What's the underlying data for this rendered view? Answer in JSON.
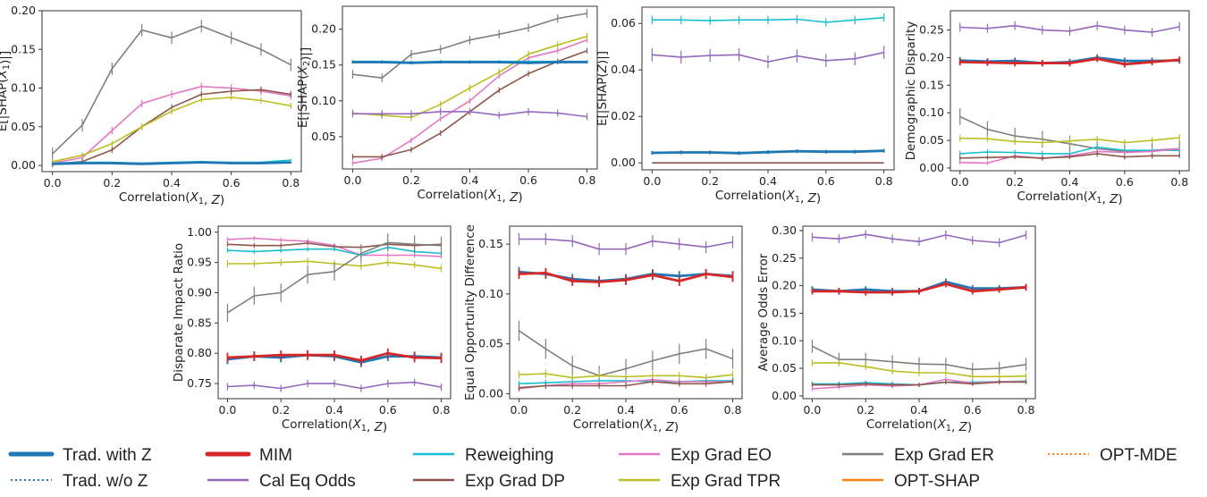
{
  "legend": [
    {
      "key": "trad_z",
      "label": "Trad. with Z",
      "color": "#1f77b4",
      "style": "thick"
    },
    {
      "key": "mim",
      "label": "MIM",
      "color": "#d62728",
      "style": "thick"
    },
    {
      "key": "rew",
      "label": "Reweighing",
      "color": "#17becf",
      "style": "solid"
    },
    {
      "key": "eo",
      "label": "Exp Grad EO",
      "color": "#e377c2",
      "style": "solid"
    },
    {
      "key": "er",
      "label": "Exp Grad ER",
      "color": "#7f7f7f",
      "style": "solid"
    },
    {
      "key": "optmde",
      "label": "OPT-MDE",
      "color": "#ff7f0e",
      "style": "dotted"
    },
    {
      "key": "trad_noz",
      "label": "Trad. w/o Z",
      "color": "#1f77b4",
      "style": "dotted"
    },
    {
      "key": "cal",
      "label": "Cal Eq Odds",
      "color": "#9467bd",
      "style": "solid"
    },
    {
      "key": "dp",
      "label": "Exp Grad DP",
      "color": "#8c564b",
      "style": "solid"
    },
    {
      "key": "tpr",
      "label": "Exp Grad TPR",
      "color": "#bcbd22",
      "style": "solid"
    },
    {
      "key": "optshap",
      "label": "OPT-SHAP",
      "color": "#ff7f0e",
      "style": "solid"
    }
  ],
  "colors": {
    "trad_z": "#1f77b4",
    "trad_noz": "#1f77b4",
    "mim": "#d62728",
    "cal": "#9467bd",
    "rew": "#17becf",
    "dp": "#8c564b",
    "eo": "#e377c2",
    "tpr": "#bcbd22",
    "er": "#7f7f7f",
    "optshap": "#ff7f0e",
    "optmde": "#ff7f0e"
  },
  "chart_data": [
    {
      "type": "line",
      "xlabel": "Correlation(X1, Z)",
      "ylabel": "E[|SHAP(X1)|]",
      "x": [
        0.0,
        0.1,
        0.2,
        0.3,
        0.4,
        0.5,
        0.6,
        0.7,
        0.8
      ],
      "xticks": [
        "0.0",
        "0.2",
        "0.4",
        "0.6",
        "0.8"
      ],
      "xlim": [
        -0.035,
        0.835
      ],
      "ylim": [
        -0.008,
        0.2
      ],
      "yticks": [
        0.0,
        0.05,
        0.1,
        0.15,
        0.2
      ],
      "ytick_labels": [
        "0.00",
        "0.05",
        "0.10",
        "0.15",
        "0.20"
      ],
      "series": [
        {
          "key": "er",
          "values": [
            0.015,
            0.052,
            0.125,
            0.175,
            0.165,
            0.18,
            0.165,
            0.15,
            0.13
          ],
          "err": 0.008
        },
        {
          "key": "eo",
          "values": [
            0.003,
            0.01,
            0.045,
            0.08,
            0.092,
            0.102,
            0.1,
            0.096,
            0.09
          ],
          "err": 0.005
        },
        {
          "key": "dp",
          "values": [
            0.002,
            0.005,
            0.02,
            0.05,
            0.075,
            0.092,
            0.096,
            0.098,
            0.092
          ],
          "err": 0.004
        },
        {
          "key": "tpr",
          "values": [
            0.005,
            0.013,
            0.028,
            0.05,
            0.07,
            0.085,
            0.088,
            0.084,
            0.077
          ],
          "err": 0.004
        },
        {
          "key": "rew",
          "values": [
            0.003,
            0.004,
            0.004,
            0.003,
            0.004,
            0.005,
            0.004,
            0.004,
            0.007
          ],
          "err": 0.001
        },
        {
          "key": "trad_z",
          "values": [
            0.002,
            0.003,
            0.003,
            0.002,
            0.003,
            0.004,
            0.003,
            0.003,
            0.004
          ],
          "err": 0.001
        }
      ]
    },
    {
      "type": "line",
      "xlabel": "Correlation(X1, Z)",
      "ylabel": "E[|SHAP(X2)|]",
      "x": [
        0.0,
        0.1,
        0.2,
        0.3,
        0.4,
        0.5,
        0.6,
        0.7,
        0.8
      ],
      "xticks": [
        "0.0",
        "0.2",
        "0.4",
        "0.6",
        "0.8"
      ],
      "xlim": [
        -0.035,
        0.835
      ],
      "ylim": [
        0.005,
        0.232
      ],
      "yticks": [
        0.05,
        0.1,
        0.15,
        0.2
      ],
      "ytick_labels": [
        "0.05",
        "0.10",
        "0.15",
        "0.20"
      ],
      "series": [
        {
          "key": "er",
          "values": [
            0.137,
            0.132,
            0.165,
            0.172,
            0.185,
            0.193,
            0.202,
            0.215,
            0.222
          ],
          "err": 0.006
        },
        {
          "key": "eo",
          "values": [
            0.013,
            0.02,
            0.045,
            0.075,
            0.1,
            0.135,
            0.16,
            0.17,
            0.185
          ],
          "err": 0.004
        },
        {
          "key": "tpr",
          "values": [
            0.083,
            0.08,
            0.077,
            0.095,
            0.118,
            0.14,
            0.165,
            0.178,
            0.19
          ],
          "err": 0.005
        },
        {
          "key": "dp",
          "values": [
            0.022,
            0.022,
            0.032,
            0.055,
            0.085,
            0.115,
            0.138,
            0.155,
            0.17
          ],
          "err": 0.004
        },
        {
          "key": "cal",
          "values": [
            0.082,
            0.082,
            0.082,
            0.085,
            0.085,
            0.08,
            0.085,
            0.083,
            0.078
          ],
          "err": 0.005
        },
        {
          "key": "rew",
          "values": [
            0.155,
            0.155,
            0.154,
            0.155,
            0.155,
            0.155,
            0.155,
            0.155,
            0.155
          ],
          "err": 0.002
        },
        {
          "key": "trad_z",
          "values": [
            0.154,
            0.154,
            0.153,
            0.154,
            0.154,
            0.154,
            0.153,
            0.154,
            0.154
          ],
          "err": 0.002
        }
      ]
    },
    {
      "type": "line",
      "xlabel": "Correlation(X1, Z)",
      "ylabel": "E[|SHAP(Z)|]",
      "x": [
        0.0,
        0.1,
        0.2,
        0.3,
        0.4,
        0.5,
        0.6,
        0.7,
        0.8
      ],
      "xticks": [
        "0.0",
        "0.2",
        "0.4",
        "0.6",
        "0.8"
      ],
      "xlim": [
        -0.035,
        0.835
      ],
      "ylim": [
        -0.003,
        0.067
      ],
      "yticks": [
        0.0,
        0.02,
        0.04,
        0.06
      ],
      "ytick_labels": [
        "0.00",
        "0.02",
        "0.04",
        "0.06"
      ],
      "series": [
        {
          "key": "rew",
          "values": [
            0.0615,
            0.0615,
            0.0612,
            0.0615,
            0.0615,
            0.0618,
            0.0605,
            0.0615,
            0.0625
          ],
          "err": 0.0018
        },
        {
          "key": "cal",
          "values": [
            0.0465,
            0.0455,
            0.0462,
            0.0465,
            0.0435,
            0.046,
            0.044,
            0.0448,
            0.0475
          ],
          "err": 0.0028
        },
        {
          "key": "trad_z",
          "values": [
            0.0043,
            0.0045,
            0.0045,
            0.0042,
            0.0046,
            0.005,
            0.0048,
            0.0048,
            0.0052
          ],
          "err": 0.0008
        },
        {
          "key": "dp",
          "values": [
            0.0,
            0.0,
            0.0,
            0.0,
            0.0,
            0.0,
            0.0,
            0.0,
            0.0
          ],
          "err": 0
        }
      ]
    },
    {
      "type": "line",
      "xlabel": "Correlation(X1, Z)",
      "ylabel": "Demographic Disparity",
      "x": [
        0.0,
        0.1,
        0.2,
        0.3,
        0.4,
        0.5,
        0.6,
        0.7,
        0.8
      ],
      "xticks": [
        "0.0",
        "0.2",
        "0.4",
        "0.6",
        "0.8"
      ],
      "xlim": [
        -0.035,
        0.835
      ],
      "ylim": [
        -0.005,
        0.285
      ],
      "yticks": [
        0.0,
        0.05,
        0.1,
        0.15,
        0.2,
        0.25
      ],
      "ytick_labels": [
        "0.00",
        "0.05",
        "0.10",
        "0.15",
        "0.20",
        "0.25"
      ],
      "series": [
        {
          "key": "cal",
          "values": [
            0.255,
            0.253,
            0.258,
            0.25,
            0.248,
            0.258,
            0.25,
            0.246,
            0.256
          ],
          "err": 0.008
        },
        {
          "key": "trad_z",
          "values": [
            0.195,
            0.193,
            0.194,
            0.19,
            0.192,
            0.2,
            0.194,
            0.194,
            0.195
          ],
          "err": 0.006
        },
        {
          "key": "mim",
          "values": [
            0.192,
            0.191,
            0.19,
            0.19,
            0.19,
            0.198,
            0.188,
            0.192,
            0.196
          ],
          "err": 0.006
        },
        {
          "key": "er",
          "values": [
            0.093,
            0.07,
            0.058,
            0.052,
            0.044,
            0.035,
            0.03,
            0.032,
            0.035
          ],
          "err": 0.015
        },
        {
          "key": "tpr",
          "values": [
            0.054,
            0.053,
            0.048,
            0.046,
            0.049,
            0.052,
            0.046,
            0.05,
            0.055
          ],
          "err": 0.006
        },
        {
          "key": "rew",
          "values": [
            0.026,
            0.029,
            0.028,
            0.026,
            0.026,
            0.038,
            0.032,
            0.032,
            0.032
          ],
          "err": 0.005
        },
        {
          "key": "eo",
          "values": [
            0.01,
            0.009,
            0.022,
            0.017,
            0.022,
            0.03,
            0.028,
            0.03,
            0.035
          ],
          "err": 0.004
        },
        {
          "key": "dp",
          "values": [
            0.018,
            0.019,
            0.02,
            0.018,
            0.02,
            0.026,
            0.02,
            0.022,
            0.022
          ],
          "err": 0.004
        }
      ]
    },
    {
      "type": "line",
      "xlabel": "Correlation(X1, Z)",
      "ylabel": "Disparate Impact Ratio",
      "x": [
        0.0,
        0.1,
        0.2,
        0.3,
        0.4,
        0.5,
        0.6,
        0.7,
        0.8
      ],
      "xticks": [
        "0.0",
        "0.2",
        "0.4",
        "0.6",
        "0.8"
      ],
      "xlim": [
        -0.035,
        0.835
      ],
      "ylim": [
        0.725,
        1.01
      ],
      "yticks": [
        0.75,
        0.8,
        0.85,
        0.9,
        0.95,
        1.0
      ],
      "ytick_labels": [
        "0.75",
        "0.80",
        "0.85",
        "0.90",
        "0.95",
        "1.00"
      ],
      "series": [
        {
          "key": "eo",
          "values": [
            0.988,
            0.99,
            0.987,
            0.985,
            0.978,
            0.962,
            0.962,
            0.962,
            0.96
          ],
          "err": 0.004
        },
        {
          "key": "dp",
          "values": [
            0.98,
            0.978,
            0.978,
            0.982,
            0.976,
            0.975,
            0.98,
            0.978,
            0.98
          ],
          "err": 0.004
        },
        {
          "key": "rew",
          "values": [
            0.97,
            0.968,
            0.97,
            0.972,
            0.972,
            0.962,
            0.975,
            0.968,
            0.965
          ],
          "err": 0.004
        },
        {
          "key": "tpr",
          "values": [
            0.948,
            0.948,
            0.95,
            0.952,
            0.948,
            0.944,
            0.95,
            0.946,
            0.94
          ],
          "err": 0.006
        },
        {
          "key": "er",
          "values": [
            0.867,
            0.895,
            0.9,
            0.93,
            0.935,
            0.965,
            0.983,
            0.98,
            0.978
          ],
          "err": 0.015
        },
        {
          "key": "trad_z",
          "values": [
            0.79,
            0.795,
            0.793,
            0.797,
            0.795,
            0.785,
            0.795,
            0.795,
            0.793
          ],
          "err": 0.008
        },
        {
          "key": "mim",
          "values": [
            0.793,
            0.795,
            0.797,
            0.797,
            0.797,
            0.788,
            0.8,
            0.793,
            0.792
          ],
          "err": 0.008
        },
        {
          "key": "cal",
          "values": [
            0.745,
            0.747,
            0.742,
            0.75,
            0.75,
            0.742,
            0.75,
            0.752,
            0.744
          ],
          "err": 0.006
        }
      ]
    },
    {
      "type": "line",
      "xlabel": "Correlation(X1, Z)",
      "ylabel": "Equal Opportunity Difference",
      "x": [
        0.0,
        0.1,
        0.2,
        0.3,
        0.4,
        0.5,
        0.6,
        0.7,
        0.8
      ],
      "xticks": [
        "0.0",
        "0.2",
        "0.4",
        "0.6",
        "0.8"
      ],
      "xlim": [
        -0.035,
        0.835
      ],
      "ylim": [
        -0.005,
        0.168
      ],
      "yticks": [
        0.0,
        0.05,
        0.1,
        0.15
      ],
      "ytick_labels": [
        "0.00",
        "0.05",
        "0.10",
        "0.15"
      ],
      "series": [
        {
          "key": "cal",
          "values": [
            0.155,
            0.155,
            0.153,
            0.145,
            0.145,
            0.153,
            0.15,
            0.147,
            0.152
          ],
          "err": 0.006
        },
        {
          "key": "trad_z",
          "values": [
            0.122,
            0.12,
            0.115,
            0.113,
            0.115,
            0.12,
            0.118,
            0.12,
            0.118
          ],
          "err": 0.005
        },
        {
          "key": "mim",
          "values": [
            0.12,
            0.121,
            0.113,
            0.112,
            0.114,
            0.119,
            0.113,
            0.12,
            0.117
          ],
          "err": 0.005
        },
        {
          "key": "er",
          "values": [
            0.063,
            0.045,
            0.028,
            0.018,
            0.025,
            0.033,
            0.04,
            0.045,
            0.035
          ],
          "err": 0.01
        },
        {
          "key": "tpr",
          "values": [
            0.019,
            0.02,
            0.016,
            0.018,
            0.017,
            0.018,
            0.018,
            0.016,
            0.019
          ],
          "err": 0.004
        },
        {
          "key": "rew",
          "values": [
            0.01,
            0.011,
            0.012,
            0.013,
            0.013,
            0.012,
            0.012,
            0.013,
            0.013
          ],
          "err": 0.003
        },
        {
          "key": "eo",
          "values": [
            0.005,
            0.008,
            0.01,
            0.01,
            0.012,
            0.014,
            0.012,
            0.012,
            0.012
          ],
          "err": 0.003
        },
        {
          "key": "dp",
          "values": [
            0.006,
            0.008,
            0.008,
            0.008,
            0.008,
            0.012,
            0.01,
            0.01,
            0.012
          ],
          "err": 0.003
        }
      ]
    },
    {
      "type": "line",
      "xlabel": "Correlation(X1, Z)",
      "ylabel": "Average Odds Error",
      "x": [
        0.0,
        0.1,
        0.2,
        0.3,
        0.4,
        0.5,
        0.6,
        0.7,
        0.8
      ],
      "xticks": [
        "0.0",
        "0.2",
        "0.4",
        "0.6",
        "0.8"
      ],
      "xlim": [
        -0.035,
        0.835
      ],
      "ylim": [
        -0.005,
        0.308
      ],
      "yticks": [
        0.0,
        0.05,
        0.1,
        0.15,
        0.2,
        0.25,
        0.3
      ],
      "ytick_labels": [
        "0.00",
        "0.05",
        "0.10",
        "0.15",
        "0.20",
        "0.25",
        "0.30"
      ],
      "series": [
        {
          "key": "cal",
          "values": [
            0.288,
            0.285,
            0.293,
            0.285,
            0.28,
            0.292,
            0.282,
            0.278,
            0.292
          ],
          "err": 0.008
        },
        {
          "key": "trad_z",
          "values": [
            0.193,
            0.19,
            0.193,
            0.19,
            0.19,
            0.207,
            0.195,
            0.195,
            0.197
          ],
          "err": 0.006
        },
        {
          "key": "mim",
          "values": [
            0.19,
            0.19,
            0.188,
            0.188,
            0.19,
            0.203,
            0.19,
            0.193,
            0.197
          ],
          "err": 0.006
        },
        {
          "key": "er",
          "values": [
            0.09,
            0.066,
            0.066,
            0.062,
            0.058,
            0.057,
            0.048,
            0.05,
            0.057
          ],
          "err": 0.012
        },
        {
          "key": "tpr",
          "values": [
            0.06,
            0.06,
            0.053,
            0.045,
            0.042,
            0.042,
            0.035,
            0.035,
            0.036
          ],
          "err": 0.006
        },
        {
          "key": "rew",
          "values": [
            0.022,
            0.022,
            0.024,
            0.022,
            0.02,
            0.025,
            0.025,
            0.026,
            0.027
          ],
          "err": 0.004
        },
        {
          "key": "eo",
          "values": [
            0.013,
            0.016,
            0.02,
            0.018,
            0.02,
            0.03,
            0.023,
            0.026,
            0.026
          ],
          "err": 0.004
        },
        {
          "key": "dp",
          "values": [
            0.02,
            0.02,
            0.022,
            0.02,
            0.02,
            0.025,
            0.022,
            0.025,
            0.025
          ],
          "err": 0.004
        }
      ]
    }
  ]
}
